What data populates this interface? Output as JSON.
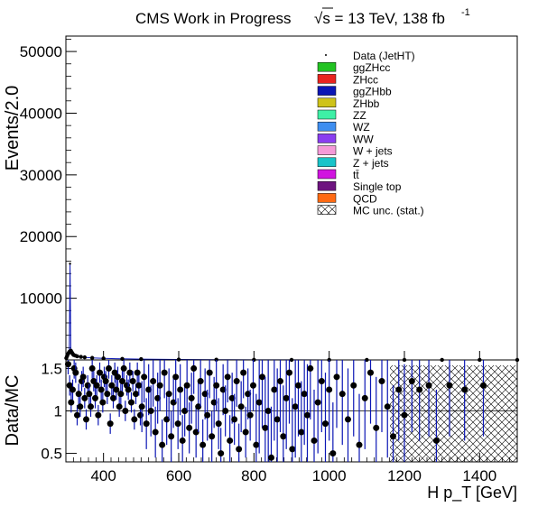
{
  "header": {
    "title": "CMS Work in Progress",
    "energy": "√s = 13 TeV, 138 fb",
    "lumi_exp": "-1"
  },
  "chart_data": [
    {
      "type": "bar",
      "panel": "main",
      "ylabel": "Events/2.0",
      "xlim": [
        300,
        1500
      ],
      "ylim": [
        0,
        52500
      ],
      "yticks": [
        10000,
        20000,
        30000,
        40000,
        50000
      ],
      "ytick_labels": [
        "10000",
        "20000",
        "30000",
        "40000",
        "50000"
      ],
      "legend_placement": "top-right",
      "legend": [
        {
          "label": "Data (JetHT)",
          "color": "#000000",
          "style": "marker"
        },
        {
          "label": "ggZHcc",
          "color": "#22c322",
          "style": "fill"
        },
        {
          "label": "ZHcc",
          "color": "#e8241f",
          "style": "fill"
        },
        {
          "label": "ggZHbb",
          "color": "#0b16b5",
          "style": "fill"
        },
        {
          "label": "ZHbb",
          "color": "#cfc31a",
          "style": "fill"
        },
        {
          "label": "ZZ",
          "color": "#3ef0a6",
          "style": "fill"
        },
        {
          "label": "WZ",
          "color": "#3e8ef0",
          "style": "fill"
        },
        {
          "label": "WW",
          "color": "#8a3ef0",
          "style": "fill"
        },
        {
          "label": "W + jets",
          "color": "#f59ad8",
          "style": "fill"
        },
        {
          "label": "Z + jets",
          "color": "#19c4c9",
          "style": "fill"
        },
        {
          "label": "tt̄",
          "color": "#d114e0",
          "style": "fill"
        },
        {
          "label": "Single top",
          "color": "#6e1480",
          "style": "fill"
        },
        {
          "label": "QCD",
          "color": "#ff6a13",
          "style": "fill"
        },
        {
          "label": "MC unc. (stat.)",
          "color": "#000000",
          "style": "hatch"
        }
      ],
      "series": [
        {
          "name": "Data (JetHT)",
          "x": [
            301,
            303,
            305,
            307,
            309,
            311,
            313,
            315,
            317,
            319,
            321,
            325,
            330,
            340,
            350,
            370,
            400,
            450,
            500,
            600,
            700,
            800,
            900,
            1000,
            1100,
            1200,
            1300,
            1400,
            1500
          ],
          "values": [
            300,
            600,
            900,
            1100,
            1300,
            15600,
            1500,
            1300,
            1100,
            900,
            800,
            700,
            600,
            500,
            420,
            330,
            250,
            180,
            130,
            70,
            40,
            25,
            15,
            9,
            6,
            4,
            3,
            2,
            1
          ]
        }
      ]
    },
    {
      "type": "scatter",
      "panel": "ratio",
      "xlabel": "H p_T [GeV]",
      "ylabel": "Data/MC",
      "xlim": [
        300,
        1500
      ],
      "ylim": [
        0.4,
        1.6
      ],
      "xticks": [
        400,
        600,
        800,
        1000,
        1200,
        1400
      ],
      "xtick_labels": [
        "400",
        "600",
        "800",
        "1000",
        "1200",
        "1400"
      ],
      "yticks": [
        0.5,
        1,
        1.5
      ],
      "ytick_labels": [
        "0.5",
        "1",
        "1.5"
      ],
      "reference_line": 1,
      "series": [
        {
          "name": "Data/MC",
          "points": [
            [
              306,
              1.55
            ],
            [
              310,
              1.3
            ],
            [
              314,
              1.1
            ],
            [
              318,
              1.25
            ],
            [
              322,
              1.5
            ],
            [
              326,
              1.45
            ],
            [
              330,
              0.95
            ],
            [
              334,
              1.2
            ],
            [
              338,
              1.05
            ],
            [
              342,
              1.35
            ],
            [
              346,
              1.4
            ],
            [
              350,
              1.15
            ],
            [
              354,
              0.9
            ],
            [
              358,
              1.3
            ],
            [
              362,
              1.2
            ],
            [
              366,
              1.05
            ],
            [
              370,
              1.5
            ],
            [
              374,
              1.35
            ],
            [
              378,
              1.15
            ],
            [
              382,
              1.3
            ],
            [
              386,
              0.95
            ],
            [
              390,
              1.45
            ],
            [
              394,
              1.25
            ],
            [
              398,
              1.1
            ],
            [
              402,
              1.4
            ],
            [
              406,
              1.35
            ],
            [
              410,
              1.2
            ],
            [
              414,
              1.5
            ],
            [
              418,
              0.85
            ],
            [
              422,
              1.3
            ],
            [
              426,
              1.15
            ],
            [
              430,
              1.45
            ],
            [
              434,
              1.25
            ],
            [
              438,
              1.4
            ],
            [
              442,
              1.05
            ],
            [
              446,
              1.2
            ],
            [
              450,
              1.35
            ],
            [
              454,
              1.5
            ],
            [
              458,
              1.0
            ],
            [
              462,
              1.3
            ],
            [
              466,
              1.25
            ],
            [
              470,
              1.45
            ],
            [
              474,
              1.1
            ],
            [
              478,
              1.35
            ],
            [
              482,
              0.9
            ],
            [
              486,
              1.2
            ],
            [
              490,
              1.45
            ],
            [
              494,
              1.3
            ],
            [
              498,
              0.95
            ],
            [
              502,
              1.05
            ],
            [
              508,
              1.4
            ],
            [
              514,
              0.85
            ],
            [
              520,
              1.25
            ],
            [
              526,
              1.0
            ],
            [
              532,
              1.35
            ],
            [
              538,
              0.75
            ],
            [
              544,
              1.15
            ],
            [
              550,
              1.3
            ],
            [
              556,
              0.6
            ],
            [
              562,
              1.45
            ],
            [
              568,
              0.9
            ],
            [
              574,
              1.2
            ],
            [
              580,
              0.7
            ],
            [
              586,
              1.1
            ],
            [
              592,
              1.4
            ],
            [
              598,
              0.85
            ],
            [
              604,
              1.25
            ],
            [
              610,
              0.65
            ],
            [
              616,
              1.0
            ],
            [
              622,
              1.3
            ],
            [
              628,
              0.8
            ],
            [
              634,
              1.15
            ],
            [
              640,
              1.5
            ],
            [
              646,
              0.75
            ],
            [
              652,
              1.05
            ],
            [
              658,
              1.35
            ],
            [
              664,
              0.6
            ],
            [
              670,
              1.2
            ],
            [
              676,
              0.95
            ],
            [
              682,
              1.45
            ],
            [
              688,
              0.7
            ],
            [
              694,
              1.1
            ],
            [
              700,
              1.3
            ],
            [
              706,
              0.85
            ],
            [
              712,
              0.5
            ],
            [
              718,
              1.25
            ],
            [
              724,
              1.0
            ],
            [
              730,
              1.4
            ],
            [
              736,
              0.65
            ],
            [
              742,
              1.15
            ],
            [
              748,
              0.9
            ],
            [
              754,
              1.35
            ],
            [
              760,
              0.55
            ],
            [
              766,
              1.05
            ],
            [
              772,
              1.45
            ],
            [
              778,
              0.75
            ],
            [
              784,
              1.2
            ],
            [
              790,
              0.95
            ],
            [
              798,
              1.3
            ],
            [
              806,
              0.6
            ],
            [
              814,
              1.1
            ],
            [
              822,
              1.4
            ],
            [
              830,
              0.8
            ],
            [
              838,
              1.0
            ],
            [
              846,
              0.45
            ],
            [
              854,
              1.25
            ],
            [
              862,
              0.9
            ],
            [
              870,
              1.35
            ],
            [
              878,
              0.7
            ],
            [
              886,
              1.15
            ],
            [
              894,
              1.45
            ],
            [
              902,
              0.55
            ],
            [
              910,
              1.05
            ],
            [
              918,
              1.3
            ],
            [
              926,
              0.75
            ],
            [
              934,
              1.2
            ],
            [
              942,
              0.95
            ],
            [
              950,
              1.5
            ],
            [
              960,
              0.65
            ],
            [
              970,
              1.1
            ],
            [
              980,
              1.35
            ],
            [
              990,
              0.85
            ],
            [
              1000,
              1.25
            ],
            [
              1010,
              0.5
            ],
            [
              1020,
              1.4
            ],
            [
              1035,
              1.2
            ],
            [
              1050,
              0.9
            ],
            [
              1065,
              1.3
            ],
            [
              1080,
              0.6
            ],
            [
              1095,
              1.15
            ],
            [
              1110,
              1.45
            ],
            [
              1125,
              0.8
            ],
            [
              1140,
              1.35
            ],
            [
              1155,
              1.05
            ],
            [
              1170,
              0.7
            ],
            [
              1185,
              1.25
            ],
            [
              1200,
              0.95
            ],
            [
              1220,
              1.35
            ],
            [
              1240,
              1.25
            ],
            [
              1265,
              1.3
            ],
            [
              1285,
              0.65
            ],
            [
              1320,
              1.3
            ],
            [
              1360,
              1.25
            ],
            [
              1410,
              1.3
            ]
          ]
        }
      ]
    }
  ]
}
